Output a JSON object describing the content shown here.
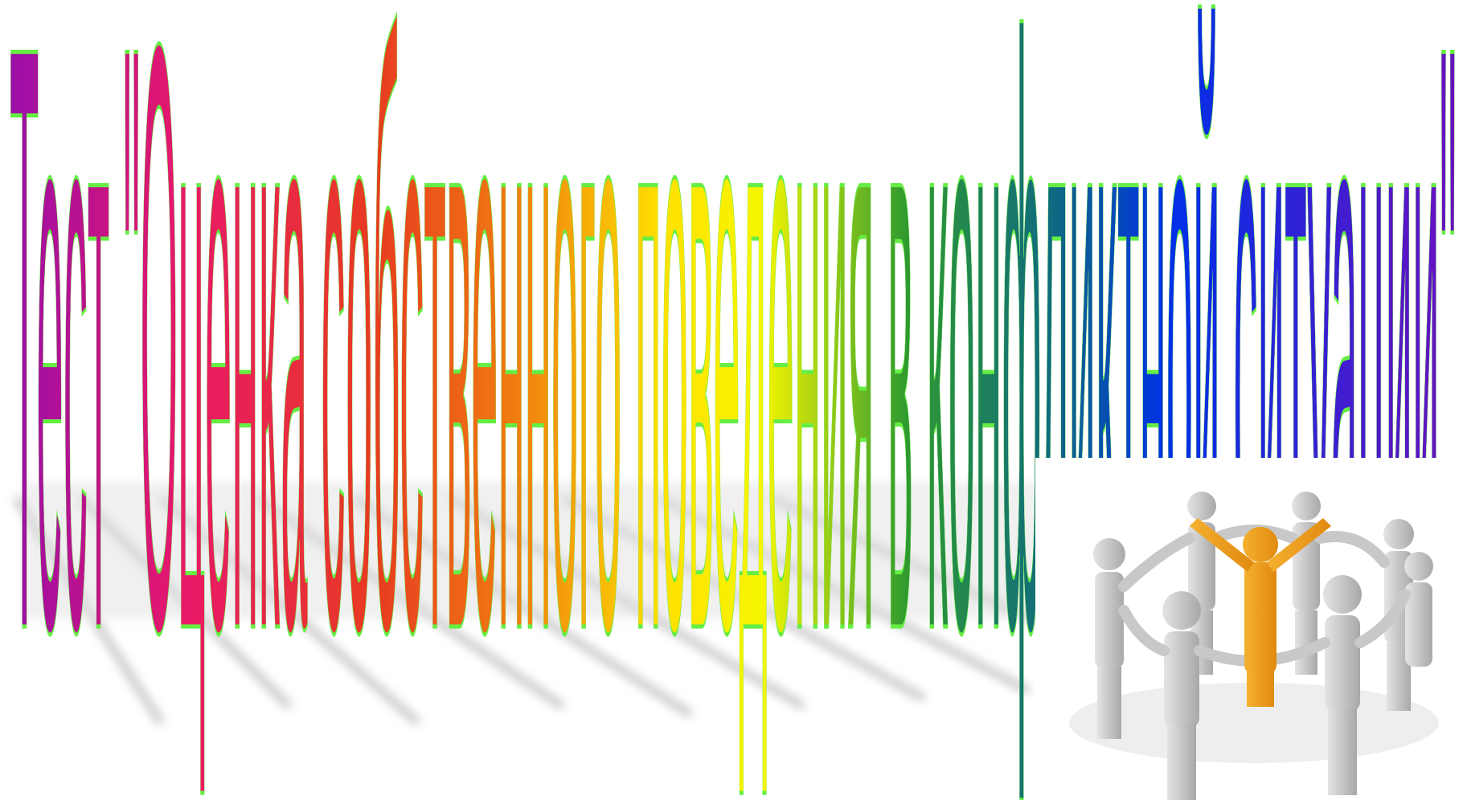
{
  "slide": {
    "title": "Тест \"Оценка собственного поведения в конфликтной ситуации\""
  }
}
